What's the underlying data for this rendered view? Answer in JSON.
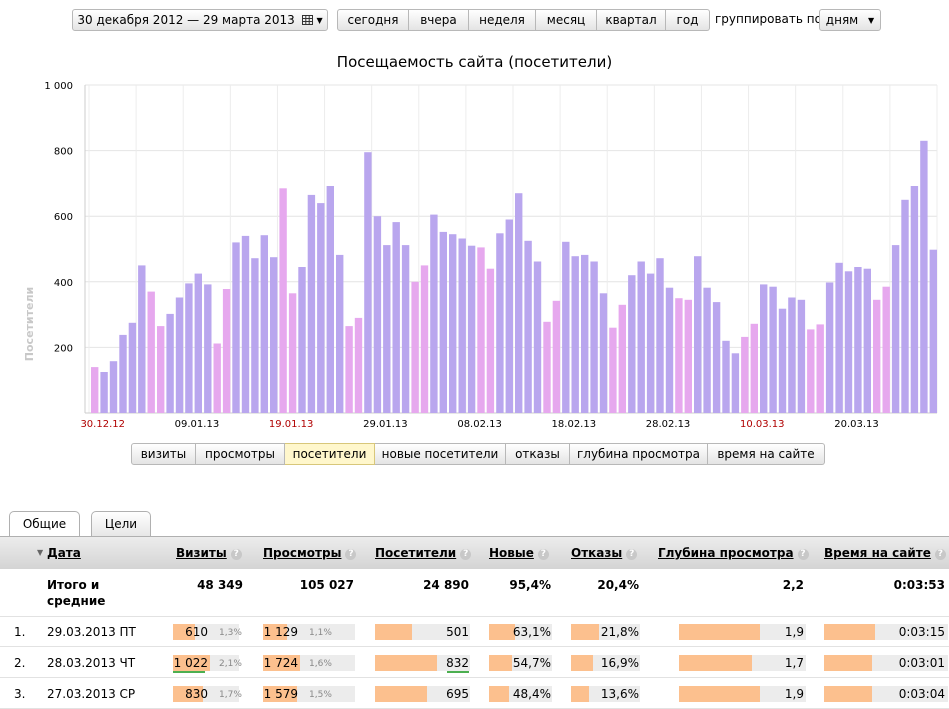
{
  "toolbar": {
    "date_range": "30 декабря 2012 — 29 марта 2013",
    "periods": [
      "сегодня",
      "вчера",
      "неделя",
      "месяц",
      "квартал",
      "год"
    ],
    "group_label": "группировать по",
    "group_value": "дням"
  },
  "chart_data": {
    "type": "bar",
    "title": "Посещаемость сайта (посетители)",
    "ylabel": "Посетители",
    "ylim": [
      0,
      1000
    ],
    "yticks": [
      "200",
      "400",
      "600",
      "800",
      "1 000"
    ],
    "grid": true,
    "xtick_labels": [
      {
        "label": "30.12.12",
        "index": 0,
        "weekend": true
      },
      {
        "label": "09.01.13",
        "index": 10,
        "weekend": false
      },
      {
        "label": "19.01.13",
        "index": 20,
        "weekend": true
      },
      {
        "label": "29.01.13",
        "index": 30,
        "weekend": false
      },
      {
        "label": "08.02.13",
        "index": 40,
        "weekend": false
      },
      {
        "label": "18.02.13",
        "index": 50,
        "weekend": false
      },
      {
        "label": "28.02.13",
        "index": 60,
        "weekend": false
      },
      {
        "label": "10.03.13",
        "index": 70,
        "weekend": true
      },
      {
        "label": "20.03.13",
        "index": 80,
        "weekend": false
      }
    ],
    "weekday_color": "#b9a6ee",
    "weekend_color": "#e6a8ee",
    "start_weekday": 0,
    "values": [
      140,
      125,
      158,
      238,
      275,
      450,
      370,
      265,
      302,
      352,
      395,
      425,
      392,
      212,
      378,
      520,
      540,
      472,
      542,
      475,
      685,
      365,
      445,
      665,
      640,
      692,
      482,
      265,
      290,
      795,
      600,
      512,
      582,
      512,
      400,
      450,
      605,
      552,
      545,
      532,
      510,
      505,
      440,
      548,
      590,
      670,
      525,
      462,
      278,
      342,
      522,
      478,
      482,
      462,
      365,
      260,
      330,
      420,
      462,
      425,
      472,
      382,
      350,
      345,
      478,
      382,
      338,
      220,
      182,
      232,
      272,
      392,
      385,
      318,
      352,
      345,
      255,
      270,
      398,
      458,
      432,
      445,
      440,
      345,
      385,
      512,
      650,
      692,
      830,
      498
    ]
  },
  "metric_tabs": [
    "визиты",
    "просмотры",
    "посетители",
    "новые посетители",
    "отказы",
    "глубина просмотра",
    "время на сайте"
  ],
  "active_metric": "посетители",
  "page_tabs": [
    "Общие",
    "Цели"
  ],
  "table": {
    "columns": [
      "Дата",
      "Визиты",
      "Просмотры",
      "Посетители",
      "Новые",
      "Отказы",
      "Глубина просмотра",
      "Время на сайте"
    ],
    "totals": {
      "label": "Итого и средние",
      "visits": "48 349",
      "views": "105 027",
      "visitors": "24 890",
      "new": "95,4%",
      "bounce": "20,4%",
      "depth": "2,2",
      "time": "0:03:53"
    },
    "rows": [
      {
        "n": "1.",
        "date": "29.03.2013 ПТ",
        "visits": "610",
        "visits_pct": "1,3%",
        "visits_share": 0.6,
        "views": "1 129",
        "views_pct": "1,1%",
        "views_share": 0.65,
        "visitors": "501",
        "visitors_share": 0.6,
        "new": "63,1%",
        "new_share": 0.63,
        "bounce": "21,8%",
        "bounce_share": 0.63,
        "depth": "1,9",
        "depth_share": 0.98,
        "time": "0:03:15",
        "time_share": 0.63
      },
      {
        "n": "2.",
        "date": "28.03.2013 ЧТ",
        "visits": "1 022",
        "visits_pct": "2,1%",
        "visits_share": 1.0,
        "views": "1 724",
        "views_pct": "1,6%",
        "views_share": 1.0,
        "visitors": "832",
        "visitors_share": 1.0,
        "new": "54,7%",
        "new_share": 0.55,
        "bounce": "16,9%",
        "bounce_share": 0.49,
        "depth": "1,7",
        "depth_share": 0.88,
        "time": "0:03:01",
        "time_share": 0.59
      },
      {
        "n": "3.",
        "date": "27.03.2013 СР",
        "visits": "830",
        "visits_pct": "1,7%",
        "visits_share": 0.81,
        "views": "1 579",
        "views_pct": "1,5%",
        "views_share": 0.92,
        "visitors": "695",
        "visitors_share": 0.84,
        "new": "48,4%",
        "new_share": 0.48,
        "bounce": "13,6%",
        "bounce_share": 0.4,
        "depth": "1,9",
        "depth_share": 0.98,
        "time": "0:03:04",
        "time_share": 0.6
      }
    ]
  }
}
